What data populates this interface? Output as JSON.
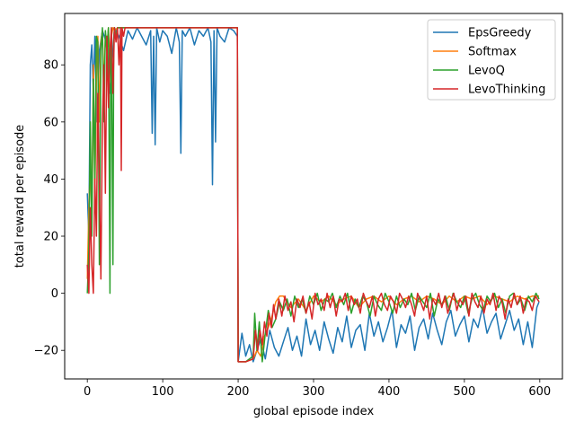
{
  "chart_data": {
    "type": "line",
    "xlabel": "global episode index",
    "ylabel": "total reward per episode",
    "xlim": [
      -30,
      630
    ],
    "ylim": [
      -30,
      98
    ],
    "xticks": [
      0,
      100,
      200,
      300,
      400,
      500,
      600
    ],
    "xtick_labels": [
      "0",
      "100",
      "200",
      "300",
      "400",
      "500",
      "600"
    ],
    "yticks": [
      -20,
      0,
      20,
      40,
      60,
      80
    ],
    "ytick_labels": [
      "−20",
      "0",
      "20",
      "40",
      "60",
      "80"
    ],
    "grid": false,
    "legend_position": "top-right",
    "series": [
      {
        "name": "EpsGreedy",
        "color": "#1f77b4",
        "x": [
          0,
          2,
          4,
          6,
          8,
          10,
          13,
          16,
          20,
          25,
          30,
          36,
          42,
          48,
          54,
          60,
          66,
          72,
          78,
          84,
          86,
          88,
          90,
          92,
          96,
          100,
          106,
          112,
          118,
          122,
          124,
          126,
          130,
          136,
          142,
          148,
          154,
          160,
          164,
          166,
          168,
          170,
          172,
          176,
          182,
          188,
          194,
          199,
          200,
          205,
          210,
          215,
          220,
          225,
          230,
          236,
          242,
          248,
          254,
          260,
          266,
          272,
          278,
          284,
          290,
          296,
          302,
          308,
          314,
          320,
          326,
          332,
          338,
          344,
          350,
          356,
          362,
          368,
          374,
          380,
          386,
          392,
          398,
          404,
          410,
          416,
          422,
          428,
          434,
          440,
          446,
          452,
          458,
          464,
          470,
          476,
          482,
          488,
          494,
          500,
          506,
          512,
          518,
          524,
          530,
          536,
          542,
          548,
          554,
          560,
          566,
          572,
          578,
          584,
          590,
          596,
          599
        ],
        "y": [
          35,
          20,
          80,
          87,
          70,
          90,
          60,
          85,
          92,
          88,
          70,
          93,
          90,
          85,
          92,
          89,
          93,
          90,
          87,
          92,
          56,
          90,
          52,
          93,
          88,
          92,
          90,
          84,
          93,
          88,
          49,
          92,
          90,
          93,
          87,
          92,
          90,
          93,
          88,
          38,
          92,
          53,
          93,
          90,
          88,
          93,
          92,
          90,
          -24,
          -14,
          -22,
          -18,
          -24,
          -20,
          -16,
          -23,
          -13,
          -19,
          -22,
          -17,
          -12,
          -20,
          -15,
          -22,
          -9,
          -18,
          -13,
          -20,
          -10,
          -16,
          -21,
          -12,
          -17,
          -8,
          -19,
          -13,
          -11,
          -20,
          -7,
          -15,
          -10,
          -17,
          -12,
          -6,
          -19,
          -11,
          -14,
          -8,
          -20,
          -12,
          -9,
          -16,
          -7,
          -13,
          -18,
          -10,
          -6,
          -15,
          -11,
          -8,
          -17,
          -9,
          -12,
          -5,
          -14,
          -10,
          -7,
          -16,
          -11,
          -6,
          -13,
          -9,
          -18,
          -10,
          -19,
          -5,
          -3
        ]
      },
      {
        "name": "Softmax",
        "color": "#ff7f0e",
        "x": [
          0,
          2,
          4,
          6,
          8,
          10,
          12,
          14,
          16,
          18,
          20,
          22,
          24,
          26,
          28,
          30,
          32,
          34,
          36,
          40,
          45,
          50,
          60,
          80,
          100,
          150,
          199,
          200,
          210,
          220,
          225,
          230,
          235,
          240,
          245,
          250,
          255,
          260,
          270,
          280,
          290,
          300,
          310,
          320,
          330,
          340,
          350,
          360,
          370,
          380,
          390,
          400,
          410,
          420,
          430,
          440,
          450,
          460,
          470,
          480,
          490,
          500,
          510,
          520,
          530,
          540,
          550,
          560,
          570,
          580,
          590,
          599
        ],
        "y": [
          5,
          30,
          45,
          25,
          80,
          35,
          75,
          90,
          60,
          88,
          92,
          70,
          91,
          85,
          93,
          80,
          90,
          93,
          92,
          93,
          93,
          93,
          93,
          93,
          93,
          93,
          93,
          -24,
          -24,
          -23,
          -20,
          -22,
          -15,
          -12,
          -8,
          -3,
          -1,
          -1,
          -5,
          -2,
          -6,
          -1,
          -3,
          -1,
          -4,
          -2,
          -1,
          -5,
          -2,
          -1,
          -3,
          -1,
          -4,
          -2,
          -1,
          -3,
          -1,
          -2,
          -4,
          -1,
          -3,
          -1,
          -2,
          -1,
          -4,
          -1,
          -2,
          -3,
          -1,
          -2,
          -1,
          -1
        ]
      },
      {
        "name": "LevoQ",
        "color": "#2ca02c",
        "x": [
          0,
          2,
          4,
          6,
          8,
          10,
          12,
          14,
          16,
          18,
          20,
          22,
          24,
          26,
          28,
          30,
          31,
          32,
          34,
          35,
          36,
          38,
          40,
          45,
          50,
          60,
          80,
          100,
          150,
          199,
          200,
          210,
          220,
          222,
          225,
          228,
          232,
          236,
          240,
          245,
          250,
          255,
          260,
          265,
          270,
          275,
          280,
          285,
          290,
          295,
          300,
          305,
          310,
          315,
          320,
          325,
          330,
          335,
          340,
          345,
          350,
          355,
          360,
          365,
          370,
          375,
          380,
          385,
          390,
          395,
          400,
          405,
          410,
          415,
          420,
          425,
          430,
          435,
          440,
          445,
          450,
          455,
          460,
          465,
          470,
          475,
          480,
          485,
          490,
          495,
          500,
          505,
          510,
          515,
          520,
          525,
          530,
          535,
          540,
          545,
          550,
          555,
          560,
          565,
          570,
          575,
          580,
          585,
          590,
          595,
          599
        ],
        "y": [
          0,
          15,
          60,
          20,
          75,
          40,
          90,
          88,
          10,
          85,
          93,
          60,
          92,
          85,
          93,
          0,
          80,
          93,
          10,
          88,
          93,
          90,
          93,
          93,
          93,
          93,
          93,
          93,
          93,
          93,
          -24,
          -24,
          -22,
          -7,
          -20,
          -10,
          -24,
          -14,
          -6,
          -12,
          -9,
          -3,
          -6,
          -2,
          -8,
          -1,
          -5,
          -2,
          -7,
          -1,
          -4,
          0,
          -6,
          -2,
          -3,
          0,
          -5,
          -1,
          -4,
          0,
          -7,
          -2,
          -5,
          -1,
          -3,
          -8,
          -1,
          -4,
          -6,
          0,
          -3,
          -7,
          -1,
          -5,
          -2,
          -4,
          0,
          -6,
          -1,
          -3,
          -5,
          0,
          -8,
          -2,
          -4,
          -1,
          -6,
          0,
          -3,
          -5,
          -1,
          -7,
          -2,
          0,
          -4,
          -6,
          -1,
          -3,
          0,
          -5,
          -2,
          -7,
          -1,
          0,
          -4,
          -2,
          -6,
          -1,
          -3,
          0,
          -2
        ]
      },
      {
        "name": "LevoThinking",
        "color": "#d62728",
        "x": [
          0,
          2,
          4,
          6,
          8,
          10,
          12,
          14,
          16,
          18,
          20,
          22,
          24,
          26,
          28,
          30,
          32,
          34,
          36,
          38,
          40,
          42,
          44,
          45,
          46,
          48,
          50,
          60,
          80,
          100,
          150,
          199,
          200,
          210,
          220,
          223,
          226,
          229,
          232,
          235,
          238,
          241,
          244,
          247,
          250,
          254,
          258,
          262,
          266,
          270,
          274,
          278,
          282,
          286,
          290,
          294,
          298,
          302,
          306,
          310,
          314,
          318,
          322,
          326,
          330,
          334,
          338,
          342,
          346,
          350,
          354,
          358,
          362,
          366,
          370,
          374,
          378,
          382,
          386,
          390,
          394,
          398,
          402,
          406,
          410,
          414,
          418,
          422,
          426,
          430,
          434,
          438,
          442,
          446,
          450,
          454,
          458,
          462,
          466,
          470,
          474,
          478,
          482,
          486,
          490,
          494,
          498,
          502,
          506,
          510,
          514,
          518,
          522,
          526,
          530,
          534,
          538,
          542,
          546,
          550,
          554,
          558,
          562,
          566,
          570,
          574,
          578,
          582,
          586,
          590,
          594,
          599
        ],
        "y": [
          10,
          0,
          30,
          10,
          0,
          40,
          20,
          70,
          39,
          5,
          60,
          80,
          35,
          90,
          65,
          85,
          93,
          70,
          93,
          88,
          93,
          80,
          93,
          43,
          93,
          90,
          93,
          93,
          93,
          93,
          93,
          93,
          -24,
          -24,
          -23,
          -13,
          -20,
          -13,
          -18,
          -10,
          -15,
          -7,
          -12,
          -4,
          -9,
          -2,
          -8,
          -1,
          -6,
          -3,
          -10,
          -2,
          -5,
          -1,
          -7,
          -3,
          -9,
          0,
          -4,
          -2,
          -6,
          0,
          -5,
          -1,
          -8,
          -2,
          -3,
          0,
          -6,
          -1,
          -4,
          -2,
          -7,
          0,
          -3,
          -5,
          -1,
          -8,
          -2,
          0,
          -4,
          -6,
          -1,
          -3,
          -7,
          0,
          -2,
          -5,
          -1,
          -4,
          -8,
          0,
          -3,
          -6,
          -1,
          -9,
          -2,
          -4,
          0,
          -5,
          -1,
          -7,
          -3,
          0,
          -6,
          -2,
          -4,
          -1,
          -8,
          0,
          -3,
          -5,
          -1,
          -7,
          -2,
          -4,
          0,
          -6,
          -1,
          -3,
          -9,
          -2,
          -5,
          0,
          -4,
          -1,
          -7,
          -2,
          -3,
          -6,
          -1,
          -3
        ]
      }
    ]
  }
}
